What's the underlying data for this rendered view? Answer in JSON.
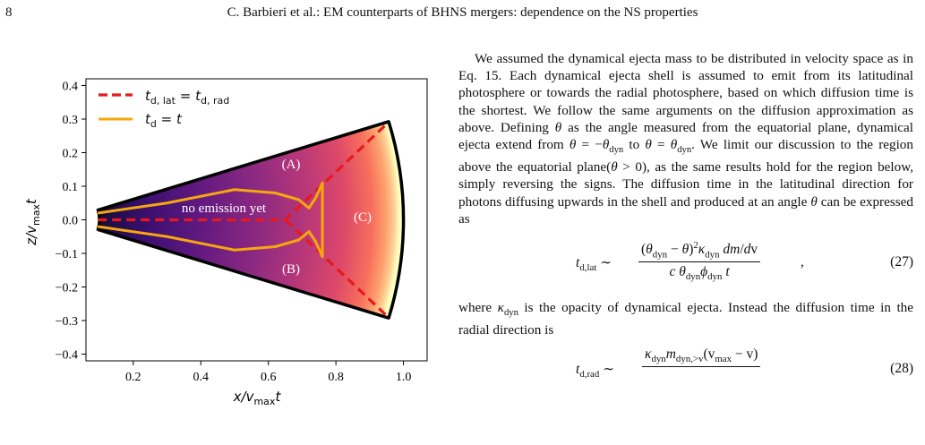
{
  "page": {
    "number": "8",
    "running_head": "C. Barbieri et al.: EM counterparts of BHNS mergers: dependence on the NS properties"
  },
  "figure": {
    "x_label": "x/v_max t",
    "y_label": "z/v_max t",
    "x_ticks": [
      "0.2",
      "0.4",
      "0.6",
      "0.8",
      "1.0"
    ],
    "y_ticks": [
      "0.4",
      "0.3",
      "0.2",
      "0.1",
      "0.0",
      "−0.1",
      "−0.2",
      "−0.3",
      "−0.4"
    ],
    "legend": {
      "dashed_label": "t_d,lat = t_d,rad",
      "solid_label": "t_d = t"
    },
    "regions": {
      "a": "(A)",
      "b": "(B)",
      "c": "(C)",
      "no_emission": "no emission yet"
    },
    "colors": {
      "dashed": "#e8181c",
      "solid": "#f5a70e",
      "fill_inner": "#1b0c43",
      "fill_outer": "#fcffa4"
    }
  },
  "chart_data": {
    "type": "line",
    "xlim": [
      0.06,
      1.07
    ],
    "ylim": [
      -0.42,
      0.42
    ],
    "xlabel": "x/v_max t",
    "ylabel": "z/v_max t",
    "grid": false,
    "legend_position": "top-left",
    "series": [
      {
        "name": "t_d,lat = t_d,rad",
        "style": "dashed",
        "color": "#e8181c",
        "x": [
          0.095,
          0.65,
          0.955
        ],
        "y": [
          0.0,
          0.0,
          0.29
        ]
      },
      {
        "name": "t_d,lat = t_d,rad",
        "style": "dashed",
        "color": "#e8181c",
        "x": [
          0.65,
          0.955
        ],
        "y": [
          0.0,
          -0.29
        ]
      },
      {
        "name": "t_d = t",
        "style": "solid",
        "color": "#f5a70e",
        "x": [
          0.095,
          0.3,
          0.5,
          0.62,
          0.69,
          0.72,
          0.74,
          0.76,
          0.76,
          0.74,
          0.72,
          0.69,
          0.62,
          0.5,
          0.3,
          0.095
        ],
        "y": [
          0.02,
          0.05,
          0.09,
          0.08,
          0.06,
          0.035,
          0.065,
          0.11,
          -0.11,
          -0.065,
          -0.035,
          -0.06,
          -0.08,
          -0.09,
          -0.05,
          -0.02
        ]
      }
    ],
    "wedge": {
      "r_inner": 0.1,
      "r_outer": 1.0,
      "angle_deg": 17
    }
  },
  "text": {
    "para1": "We assumed the dynamical ejecta mass to be distributed in velocity space as in Eq. 15. Each dynamical ejecta shell is assumed to emit from its latitudinal photosphere or towards the radial photosphere, based on which diffusion time is the shortest. We follow the same arguments on the diffusion approximation as above. Defining θ as the angle measured from the equatorial plane, dynamical ejecta extend from θ = −θ_dyn to θ = θ_dyn. We limit our discussion to the region above the equatorial plane(θ > 0), as the same results hold for the region below, simply reversing the signs. The diffusion time in the latitudinal direction for photons diffusing upwards in the shell and produced at an angle θ can be expressed as",
    "eq27_number": "(27)",
    "para2": "where κ_dyn is the opacity of dynamical ejecta. Instead the diffusion time in the radial direction is",
    "eq28_number": "(28)"
  }
}
